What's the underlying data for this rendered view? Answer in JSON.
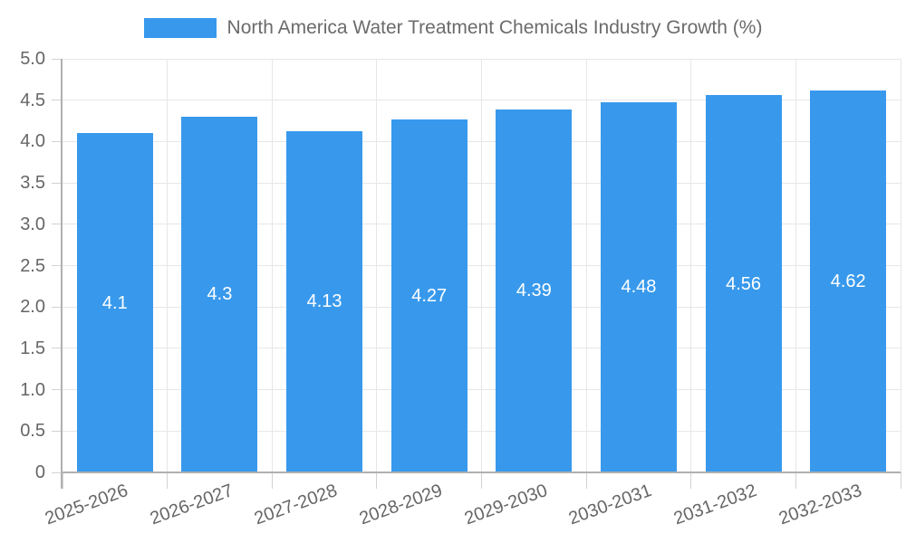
{
  "chart_data": {
    "type": "bar",
    "title": "North America Water Treatment Chemicals Industry Growth (%)",
    "categories": [
      "2025-2026",
      "2026-2027",
      "2027-2028",
      "2028-2029",
      "2029-2030",
      "2030-2031",
      "2031-2032",
      "2032-2033"
    ],
    "values": [
      4.1,
      4.3,
      4.13,
      4.27,
      4.39,
      4.48,
      4.56,
      4.62
    ],
    "value_labels": [
      "4.1",
      "4.3",
      "4.13",
      "4.27",
      "4.39",
      "4.48",
      "4.56",
      "4.62"
    ],
    "y_tick_labels": [
      "0",
      "0.5",
      "1.0",
      "1.5",
      "2.0",
      "2.5",
      "3.0",
      "3.5",
      "4.0",
      "4.5",
      "5.0"
    ],
    "y_tick_values": [
      0,
      0.5,
      1,
      1.5,
      2,
      2.5,
      3,
      3.5,
      4,
      4.5,
      5
    ],
    "ylim": [
      0,
      5
    ],
    "xlabel": "",
    "ylabel": "",
    "grid": true,
    "legend_position": "top",
    "bar_color": "#3899ec"
  },
  "colors": {
    "bar": "#3899ec",
    "gridline": "#e7e7e7",
    "axis": "#b0b0b0",
    "tick": "#d2d2d2",
    "tick_label": "#666666",
    "title_text": "#6b6b6b",
    "value_label": "#ffffff",
    "background": "#ffffff"
  }
}
